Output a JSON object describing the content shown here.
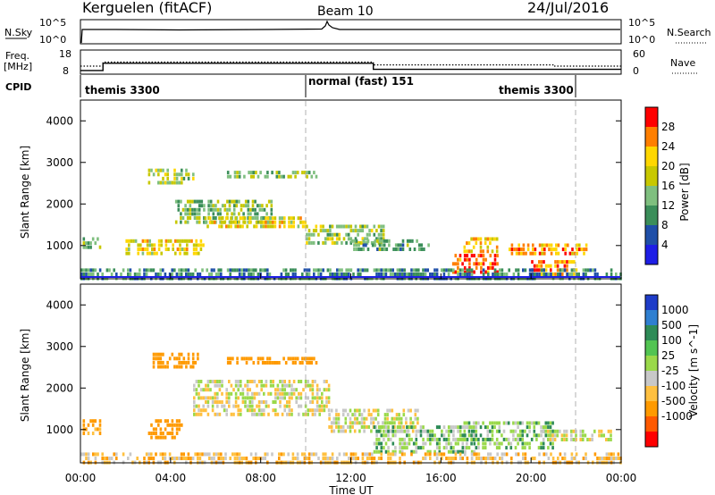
{
  "header": {
    "station": "Kerguelen (fitACF)",
    "beam": "Beam 10",
    "date": "24/Jul/2016"
  },
  "noise_panel": {
    "left_label": "N.Sky",
    "right_label": "N.Search",
    "left_ticks": [
      "10^5",
      "10^0"
    ],
    "right_ticks": [
      "10^5",
      "10^0"
    ]
  },
  "freq_panel": {
    "left_label_1": "Freq.",
    "left_label_2": "[MHz]",
    "left_ticks": [
      "18",
      "8"
    ],
    "right_label": "Nave",
    "right_ticks": [
      "60",
      "0"
    ],
    "freq_steps": [
      {
        "t": 0.0,
        "f": 9.5
      },
      {
        "t": 1.0,
        "f": 12.5
      },
      {
        "t": 13.0,
        "f": 10.0
      },
      {
        "t": 24.0,
        "f": 10.0
      }
    ],
    "nave_steps": [
      {
        "t": 0.0,
        "n": 20
      },
      {
        "t": 1.0,
        "n": 30
      },
      {
        "t": 13.0,
        "n": 23
      },
      {
        "t": 21.0,
        "n": 20
      },
      {
        "t": 24.0,
        "n": 20
      }
    ]
  },
  "cpid": {
    "label": "CPID",
    "segments": [
      {
        "start": 0.0,
        "end": 10.0,
        "name": "themis 3300"
      },
      {
        "start": 10.0,
        "end": 22.0,
        "name": "normal (fast) 151"
      },
      {
        "start": 22.0,
        "end": 24.0,
        "name": ""
      }
    ],
    "late_label": "themis 3300"
  },
  "axes": {
    "ylabel": "Slant Range [km]",
    "yticks": [
      "4000",
      "3000",
      "2000",
      "1000"
    ],
    "xlabel": "Time UT",
    "xticks": [
      "00:00",
      "04:00",
      "08:00",
      "12:00",
      "16:00",
      "20:00",
      "00:00"
    ]
  },
  "power_colorbar": {
    "label": "Power [dB]",
    "ticks": [
      "28",
      "24",
      "20",
      "16",
      "12",
      "8",
      "4"
    ],
    "colors": [
      "#ff0000",
      "#ff7f00",
      "#ffd700",
      "#c8c800",
      "#7fbf7f",
      "#3b8e5a",
      "#1f4fa8",
      "#1e1ee6"
    ]
  },
  "velocity_colorbar": {
    "label": "Velocity [m s^-1]",
    "ticks": [
      "1000",
      "500",
      "100",
      "25",
      "-25",
      "-100",
      "-500",
      "-1000"
    ],
    "colors": [
      "#1e3cc8",
      "#2f7fd0",
      "#2e8b57",
      "#52c452",
      "#9ad94a",
      "#c8c8c8",
      "#ffc040",
      "#ff9a00",
      "#ff5a00",
      "#ff0000"
    ]
  },
  "chart_data": [
    {
      "type": "heatmap",
      "title": "Power",
      "xlabel": "Time UT",
      "ylabel": "Slant Range [km]",
      "x_range_hours": [
        0,
        24
      ],
      "y_range_km": [
        200,
        4500
      ],
      "clim_db": [
        0,
        32
      ],
      "regions": [
        {
          "t0": 0.1,
          "t1": 0.9,
          "r0": 950,
          "r1": 1200,
          "db": 12
        },
        {
          "t0": 2.0,
          "t1": 5.5,
          "r0": 850,
          "r1": 1150,
          "db": 20
        },
        {
          "t0": 3.0,
          "t1": 5.0,
          "r0": 2550,
          "r1": 2850,
          "db": 16
        },
        {
          "t0": 4.2,
          "t1": 8.5,
          "r0": 1600,
          "r1": 2100,
          "db": 14
        },
        {
          "t0": 5.5,
          "t1": 10.0,
          "r0": 1450,
          "r1": 1700,
          "db": 20
        },
        {
          "t0": 6.5,
          "t1": 10.5,
          "r0": 2650,
          "r1": 2800,
          "db": 14
        },
        {
          "t0": 10.0,
          "t1": 13.5,
          "r0": 1100,
          "r1": 1500,
          "db": 16
        },
        {
          "t0": 12.0,
          "t1": 15.5,
          "r0": 950,
          "r1": 1150,
          "db": 12
        },
        {
          "t0": 16.5,
          "t1": 18.5,
          "r0": 400,
          "r1": 800,
          "db": 28
        },
        {
          "t0": 17.0,
          "t1": 18.5,
          "r0": 850,
          "r1": 1200,
          "db": 22
        },
        {
          "t0": 19.0,
          "t1": 22.5,
          "r0": 800,
          "r1": 1050,
          "db": 24
        },
        {
          "t0": 20.0,
          "t1": 22.0,
          "r0": 350,
          "r1": 650,
          "db": 26
        },
        {
          "t0": 0.0,
          "t1": 24.0,
          "r0": 250,
          "r1": 450,
          "db": 10
        }
      ]
    },
    {
      "type": "heatmap",
      "title": "Velocity",
      "xlabel": "Time UT",
      "ylabel": "Slant Range [km]",
      "x_range_hours": [
        0,
        24
      ],
      "y_range_km": [
        200,
        4500
      ],
      "clim_ms": [
        -1000,
        1000
      ],
      "regions": [
        {
          "t0": 0.1,
          "t1": 0.9,
          "r0": 950,
          "r1": 1250,
          "v": -150
        },
        {
          "t0": 3.0,
          "t1": 4.5,
          "r0": 850,
          "r1": 1250,
          "v": -300
        },
        {
          "t0": 3.2,
          "t1": 5.2,
          "r0": 2550,
          "r1": 2850,
          "v": -400
        },
        {
          "t0": 6.5,
          "t1": 10.5,
          "r0": 2600,
          "r1": 2750,
          "v": -300
        },
        {
          "t0": 5.0,
          "t1": 11.0,
          "r0": 1400,
          "r1": 2200,
          "v": 0
        },
        {
          "t0": 11.0,
          "t1": 15.0,
          "r0": 1000,
          "r1": 1500,
          "v": 0
        },
        {
          "t0": 13.0,
          "t1": 17.5,
          "r0": 500,
          "r1": 1100,
          "v": 60
        },
        {
          "t0": 17.0,
          "t1": 21.0,
          "r0": 600,
          "r1": 1200,
          "v": 80
        },
        {
          "t0": 20.5,
          "t1": 23.5,
          "r0": 800,
          "r1": 1000,
          "v": 0
        },
        {
          "t0": 0.0,
          "t1": 24.0,
          "r0": 250,
          "r1": 450,
          "v": -60
        }
      ]
    }
  ]
}
